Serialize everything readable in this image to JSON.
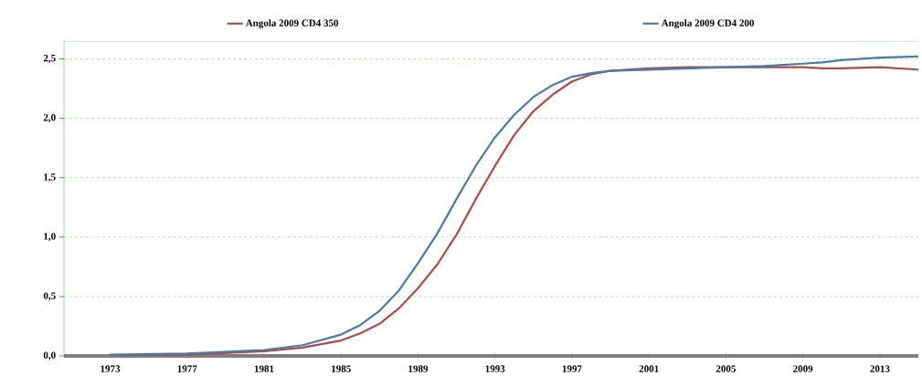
{
  "chart_data": {
    "type": "line",
    "x": [
      1973,
      1977,
      1981,
      1983,
      1985,
      1986,
      1987,
      1988,
      1989,
      1990,
      1991,
      1992,
      1993,
      1994,
      1995,
      1996,
      1997,
      1998,
      1999,
      2001,
      2003,
      2005,
      2007,
      2009,
      2010,
      2011,
      2013,
      2015
    ],
    "series": [
      {
        "name": "Angola 2009 CD4 350",
        "color": "#b04a4a",
        "values": [
          0.0,
          0.01,
          0.04,
          0.07,
          0.13,
          0.19,
          0.27,
          0.4,
          0.57,
          0.77,
          1.02,
          1.32,
          1.6,
          1.86,
          2.06,
          2.2,
          2.31,
          2.37,
          2.4,
          2.42,
          2.43,
          2.43,
          2.43,
          2.43,
          2.42,
          2.42,
          2.43,
          2.41
        ]
      },
      {
        "name": "Angola 2009 CD4 200",
        "color": "#4a7aaa",
        "values": [
          0.01,
          0.02,
          0.05,
          0.09,
          0.18,
          0.26,
          0.38,
          0.55,
          0.78,
          1.03,
          1.32,
          1.6,
          1.84,
          2.03,
          2.18,
          2.28,
          2.35,
          2.38,
          2.4,
          2.41,
          2.42,
          2.43,
          2.44,
          2.46,
          2.47,
          2.49,
          2.51,
          2.52
        ]
      }
    ],
    "xlim": [
      1970.6,
      2015
    ],
    "xticks": [
      1973,
      1977,
      1981,
      1985,
      1989,
      1993,
      1997,
      2001,
      2005,
      2009,
      2013
    ],
    "ylim": [
      0,
      2.65
    ],
    "yticks": [
      {
        "value": 0,
        "label": "0,0"
      },
      {
        "value": 0.5,
        "label": "0,5"
      },
      {
        "value": 1,
        "label": "1,0"
      },
      {
        "value": 1.5,
        "label": "1,5"
      },
      {
        "value": 2,
        "label": "2,0"
      },
      {
        "value": 2.5,
        "label": "2,5"
      }
    ],
    "grid": "y",
    "legend": "top",
    "marker": "none",
    "line_style": "solid"
  }
}
